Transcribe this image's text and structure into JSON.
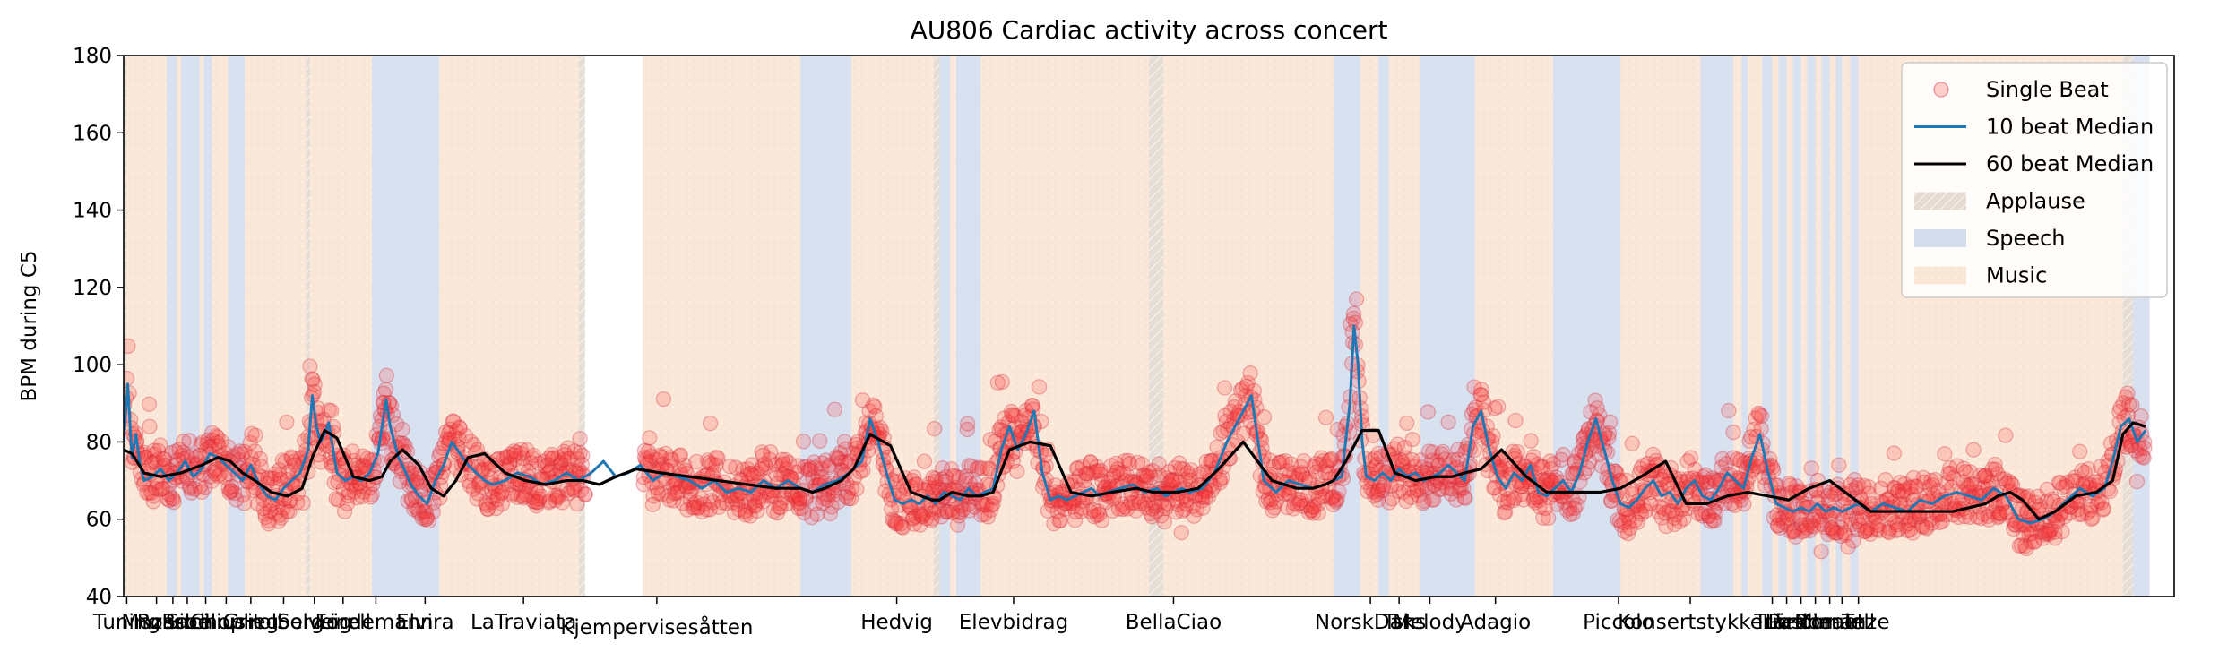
{
  "chart_data": {
    "type": "scatter",
    "title": "AU806 Cardiac activity across concert",
    "ylabel": "BPM during C5",
    "xlabel": "",
    "ylim": [
      40,
      180
    ],
    "xlim": [
      0,
      1000
    ],
    "grid": false,
    "legend_position": "top-right",
    "y_ticks": [
      40,
      60,
      80,
      100,
      120,
      140,
      160,
      180
    ],
    "x_ticks": [
      {
        "label": "Tuning",
        "x": 1.5
      },
      {
        "label": "Mozart",
        "x": 16
      },
      {
        "label": "Rossini",
        "x": 24
      },
      {
        "label": "Bach",
        "x": 31
      },
      {
        "label": "Sibelius",
        "x": 40
      },
      {
        "label": "Chopin",
        "x": 50
      },
      {
        "label": "Grieg",
        "x": 62
      },
      {
        "label": "Holberg",
        "x": 78
      },
      {
        "label": "Solveig",
        "x": 93
      },
      {
        "label": "Forell",
        "x": 107
      },
      {
        "label": "Lindemann",
        "x": 123
      },
      {
        "label": "Elvira",
        "x": 147
      },
      {
        "label": "LaTraviata",
        "x": 195
      },
      {
        "label": "Kjempervisesåtten",
        "x": 260
      },
      {
        "label": "Hedvig",
        "x": 377
      },
      {
        "label": "Elevbidrag",
        "x": 434
      },
      {
        "label": "BellaCiao",
        "x": 512
      },
      {
        "label": "NorskDans",
        "x": 608
      },
      {
        "label": "Tsk",
        "x": 622
      },
      {
        "label": "Melody",
        "x": 637
      },
      {
        "label": "Adagio",
        "x": 669
      },
      {
        "label": "Piccolo",
        "x": 729
      },
      {
        "label": "Konsertstykke",
        "x": 764
      },
      {
        "label": "Trio",
        "x": 804
      },
      {
        "label": "Lied",
        "x": 811
      },
      {
        "label": "Ländler",
        "x": 818
      },
      {
        "label": "Pastorale",
        "x": 825
      },
      {
        "label": "Minuet",
        "x": 832
      },
      {
        "label": "Romanze",
        "x": 838
      },
      {
        "label": "Tell",
        "x": 846
      }
    ],
    "legend": [
      {
        "label": "Single Beat",
        "color": "#ff0000",
        "kind": "marker"
      },
      {
        "label": "10 beat Median",
        "color": "#1f77b4",
        "kind": "line"
      },
      {
        "label": "60 beat Median",
        "color": "#000000",
        "kind": "line"
      },
      {
        "label": "Applause",
        "color": "#c9b3a3",
        "kind": "patch-hatched"
      },
      {
        "label": "Speech",
        "color": "#b8c8e2",
        "kind": "patch"
      },
      {
        "label": "Music",
        "color": "#f6d2b6",
        "kind": "patch-dotted"
      }
    ],
    "regions": [
      {
        "type": "Applause",
        "x0": 0,
        "x1": 1.5
      },
      {
        "type": "Music",
        "x0": 1.5,
        "x1": 21
      },
      {
        "type": "Speech",
        "x0": 21,
        "x1": 26
      },
      {
        "type": "Music",
        "x0": 26,
        "x1": 28
      },
      {
        "type": "Speech",
        "x0": 28,
        "x1": 37
      },
      {
        "type": "Music",
        "x0": 37,
        "x1": 39
      },
      {
        "type": "Speech",
        "x0": 39,
        "x1": 43
      },
      {
        "type": "Music",
        "x0": 43,
        "x1": 51
      },
      {
        "type": "Speech",
        "x0": 51,
        "x1": 59
      },
      {
        "type": "Music",
        "x0": 59,
        "x1": 89
      },
      {
        "type": "Applause",
        "x0": 89,
        "x1": 91
      },
      {
        "type": "Music",
        "x0": 91,
        "x1": 121
      },
      {
        "type": "Speech",
        "x0": 121,
        "x1": 154
      },
      {
        "type": "Music",
        "x0": 154,
        "x1": 222
      },
      {
        "type": "Applause",
        "x0": 222,
        "x1": 225
      },
      {
        "type": "Music",
        "x0": 253,
        "x1": 330
      },
      {
        "type": "Speech",
        "x0": 330,
        "x1": 355
      },
      {
        "type": "Music",
        "x0": 355,
        "x1": 395
      },
      {
        "type": "Applause",
        "x0": 395,
        "x1": 398
      },
      {
        "type": "Speech",
        "x0": 398,
        "x1": 403
      },
      {
        "type": "Music",
        "x0": 403,
        "x1": 406
      },
      {
        "type": "Speech",
        "x0": 406,
        "x1": 418
      },
      {
        "type": "Music",
        "x0": 418,
        "x1": 500
      },
      {
        "type": "Applause",
        "x0": 500,
        "x1": 507
      },
      {
        "type": "Music",
        "x0": 507,
        "x1": 590
      },
      {
        "type": "Speech",
        "x0": 590,
        "x1": 603
      },
      {
        "type": "Music",
        "x0": 603,
        "x1": 612
      },
      {
        "type": "Speech",
        "x0": 612,
        "x1": 617
      },
      {
        "type": "Music",
        "x0": 617,
        "x1": 632
      },
      {
        "type": "Speech",
        "x0": 632,
        "x1": 659
      },
      {
        "type": "Music",
        "x0": 659,
        "x1": 697
      },
      {
        "type": "Speech",
        "x0": 697,
        "x1": 730
      },
      {
        "type": "Music",
        "x0": 730,
        "x1": 769
      },
      {
        "type": "Speech",
        "x0": 769,
        "x1": 785
      },
      {
        "type": "Music",
        "x0": 785,
        "x1": 789
      },
      {
        "type": "Speech",
        "x0": 789,
        "x1": 792
      },
      {
        "type": "Music",
        "x0": 792,
        "x1": 799
      },
      {
        "type": "Speech",
        "x0": 799,
        "x1": 804
      },
      {
        "type": "Music",
        "x0": 804,
        "x1": 807
      },
      {
        "type": "Speech",
        "x0": 807,
        "x1": 811
      },
      {
        "type": "Music",
        "x0": 811,
        "x1": 814
      },
      {
        "type": "Speech",
        "x0": 814,
        "x1": 818
      },
      {
        "type": "Music",
        "x0": 818,
        "x1": 821
      },
      {
        "type": "Speech",
        "x0": 821,
        "x1": 825
      },
      {
        "type": "Music",
        "x0": 825,
        "x1": 828
      },
      {
        "type": "Speech",
        "x0": 828,
        "x1": 832
      },
      {
        "type": "Music",
        "x0": 832,
        "x1": 835
      },
      {
        "type": "Speech",
        "x0": 835,
        "x1": 838
      },
      {
        "type": "Music",
        "x0": 838,
        "x1": 842
      },
      {
        "type": "Speech",
        "x0": 842,
        "x1": 846
      },
      {
        "type": "Music",
        "x0": 846,
        "x1": 975
      },
      {
        "type": "Applause",
        "x0": 975,
        "x1": 980
      },
      {
        "type": "Speech",
        "x0": 980,
        "x1": 988
      }
    ],
    "series": [
      {
        "name": "60 beat Median",
        "color": "#000000",
        "x": [
          0,
          4,
          10,
          18,
          28,
          38,
          46,
          52,
          58,
          64,
          72,
          80,
          87,
          92,
          98,
          104,
          112,
          120,
          126,
          130,
          136,
          144,
          150,
          156,
          162,
          168,
          176,
          186,
          196,
          206,
          216,
          224,
          232,
          240,
          250,
          262,
          276,
          290,
          304,
          318,
          330,
          336,
          342,
          350,
          356,
          364,
          374,
          384,
          394,
          398,
          404,
          412,
          418,
          424,
          432,
          442,
          452,
          462,
          472,
          482,
          494,
          502,
          508,
          514,
          524,
          534,
          546,
          560,
          572,
          580,
          586,
          590,
          596,
          604,
          612,
          620,
          630,
          640,
          648,
          654,
          662,
          672,
          684,
          694,
          700,
          706,
          712,
          720,
          730,
          740,
          752,
          762,
          772,
          782,
          792,
          802,
          812,
          822,
          832,
          842,
          852,
          862,
          872,
          882,
          892,
          900,
          908,
          914,
          920,
          926,
          934,
          942,
          952,
          962,
          970,
          975,
          980,
          986
        ],
        "y": [
          78,
          77,
          72,
          71,
          72,
          74,
          76,
          75,
          72,
          70,
          67,
          66,
          68,
          76,
          83,
          81,
          71,
          70,
          71,
          75,
          78,
          74,
          68,
          66,
          70,
          76,
          77,
          72,
          70,
          69,
          70,
          70,
          69,
          71,
          73,
          72,
          71,
          70,
          69,
          68,
          68,
          67,
          68,
          70,
          73,
          82,
          79,
          67,
          65,
          65,
          67,
          66,
          66,
          67,
          78,
          80,
          79,
          67,
          66,
          67,
          68,
          67,
          67,
          67,
          68,
          73,
          80,
          70,
          68,
          68,
          69,
          70,
          75,
          83,
          83,
          72,
          70,
          71,
          71,
          72,
          73,
          78,
          71,
          67,
          67,
          67,
          67,
          67,
          68,
          71,
          75,
          64,
          64,
          66,
          67,
          66,
          65,
          68,
          70,
          66,
          62,
          62,
          62,
          62,
          62,
          63,
          64,
          66,
          67,
          65,
          60,
          62,
          66,
          67,
          70,
          82,
          85,
          84
        ]
      },
      {
        "name": "10 beat Median",
        "color": "#1f77b4",
        "x": [
          0,
          2,
          4,
          6,
          8,
          10,
          14,
          18,
          22,
          26,
          30,
          34,
          38,
          42,
          46,
          50,
          54,
          58,
          62,
          66,
          70,
          74,
          78,
          82,
          86,
          90,
          92,
          94,
          96,
          98,
          100,
          104,
          108,
          112,
          116,
          120,
          124,
          128,
          130,
          132,
          134,
          136,
          140,
          144,
          148,
          152,
          156,
          160,
          164,
          168,
          172,
          176,
          180,
          186,
          192,
          198,
          204,
          210,
          216,
          222,
          228,
          234,
          240,
          246,
          252,
          258,
          264,
          270,
          276,
          282,
          288,
          294,
          300,
          306,
          312,
          318,
          324,
          330,
          336,
          342,
          348,
          354,
          360,
          364,
          368,
          372,
          376,
          380,
          384,
          388,
          392,
          396,
          400,
          404,
          408,
          412,
          416,
          420,
          424,
          428,
          432,
          436,
          440,
          444,
          448,
          452,
          456,
          460,
          464,
          468,
          472,
          476,
          480,
          486,
          492,
          498,
          504,
          508,
          512,
          516,
          520,
          526,
          532,
          538,
          544,
          550,
          556,
          562,
          568,
          574,
          580,
          586,
          590,
          594,
          598,
          600,
          602,
          604,
          606,
          610,
          614,
          618,
          622,
          626,
          630,
          634,
          638,
          642,
          646,
          650,
          654,
          658,
          662,
          666,
          670,
          674,
          678,
          682,
          686,
          690,
          694,
          698,
          702,
          706,
          710,
          714,
          718,
          722,
          726,
          730,
          734,
          738,
          742,
          746,
          750,
          754,
          758,
          762,
          766,
          770,
          774,
          778,
          782,
          786,
          790,
          794,
          798,
          802,
          806,
          810,
          814,
          818,
          822,
          826,
          830,
          834,
          838,
          842,
          846,
          852,
          858,
          864,
          870,
          876,
          882,
          888,
          894,
          900,
          906,
          912,
          918,
          924,
          930,
          936,
          942,
          948,
          954,
          960,
          966,
          970,
          974,
          978,
          982,
          986
        ],
        "y": [
          80,
          95,
          76,
          82,
          74,
          70,
          71,
          73,
          70,
          72,
          75,
          71,
          73,
          77,
          76,
          74,
          72,
          70,
          74,
          69,
          66,
          65,
          68,
          70,
          72,
          78,
          92,
          84,
          80,
          82,
          85,
          72,
          70,
          71,
          70,
          72,
          77,
          91,
          84,
          80,
          76,
          74,
          69,
          66,
          64,
          70,
          74,
          80,
          77,
          74,
          72,
          70,
          69,
          70,
          72,
          71,
          69,
          70,
          72,
          70,
          72,
          75,
          71,
          72,
          74,
          70,
          72,
          71,
          70,
          68,
          70,
          67,
          68,
          67,
          70,
          68,
          70,
          68,
          67,
          69,
          70,
          72,
          75,
          86,
          80,
          72,
          65,
          64,
          65,
          64,
          66,
          64,
          67,
          66,
          65,
          68,
          66,
          67,
          68,
          78,
          84,
          78,
          82,
          88,
          72,
          65,
          66,
          65,
          66,
          67,
          68,
          66,
          67,
          68,
          69,
          67,
          68,
          66,
          67,
          68,
          67,
          68,
          72,
          80,
          86,
          92,
          70,
          67,
          70,
          69,
          68,
          69,
          70,
          71,
          90,
          110,
          100,
          80,
          71,
          70,
          72,
          70,
          73,
          71,
          72,
          70,
          71,
          72,
          74,
          72,
          70,
          84,
          88,
          78,
          71,
          68,
          72,
          70,
          74,
          67,
          66,
          68,
          70,
          67,
          72,
          80,
          86,
          78,
          70,
          64,
          63,
          65,
          68,
          70,
          66,
          67,
          64,
          68,
          70,
          66,
          65,
          68,
          72,
          70,
          68,
          76,
          82,
          72,
          64,
          63,
          62,
          63,
          62,
          64,
          62,
          63,
          62,
          63,
          64,
          62,
          64,
          63,
          62,
          65,
          64,
          66,
          67,
          66,
          65,
          68,
          66,
          60,
          59,
          60,
          62,
          65,
          68,
          66,
          68,
          75,
          84,
          86,
          80,
          83
        ]
      }
    ]
  }
}
